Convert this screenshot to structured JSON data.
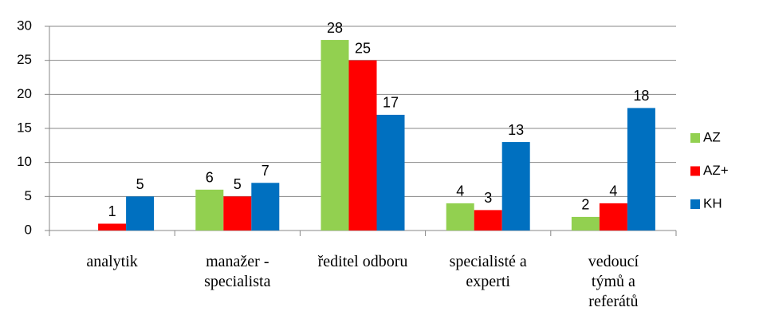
{
  "chart_data": {
    "type": "bar",
    "categories": [
      "analytik",
      "manažer - specialista",
      "ředitel odboru",
      "specialisté a experti",
      "vedoucí týmů a referátů"
    ],
    "series": [
      {
        "name": "AZ",
        "color": "#92d050",
        "values": [
          null,
          6,
          28,
          4,
          2
        ]
      },
      {
        "name": "AZ+",
        "color": "#ff0000",
        "values": [
          1,
          5,
          25,
          3,
          4
        ]
      },
      {
        "name": "KH",
        "color": "#0070c0",
        "values": [
          5,
          7,
          17,
          13,
          18
        ]
      }
    ],
    "ylim": [
      0,
      30
    ],
    "yticks": [
      0,
      5,
      10,
      15,
      20,
      25,
      30
    ],
    "grid": true,
    "legend": "right"
  }
}
